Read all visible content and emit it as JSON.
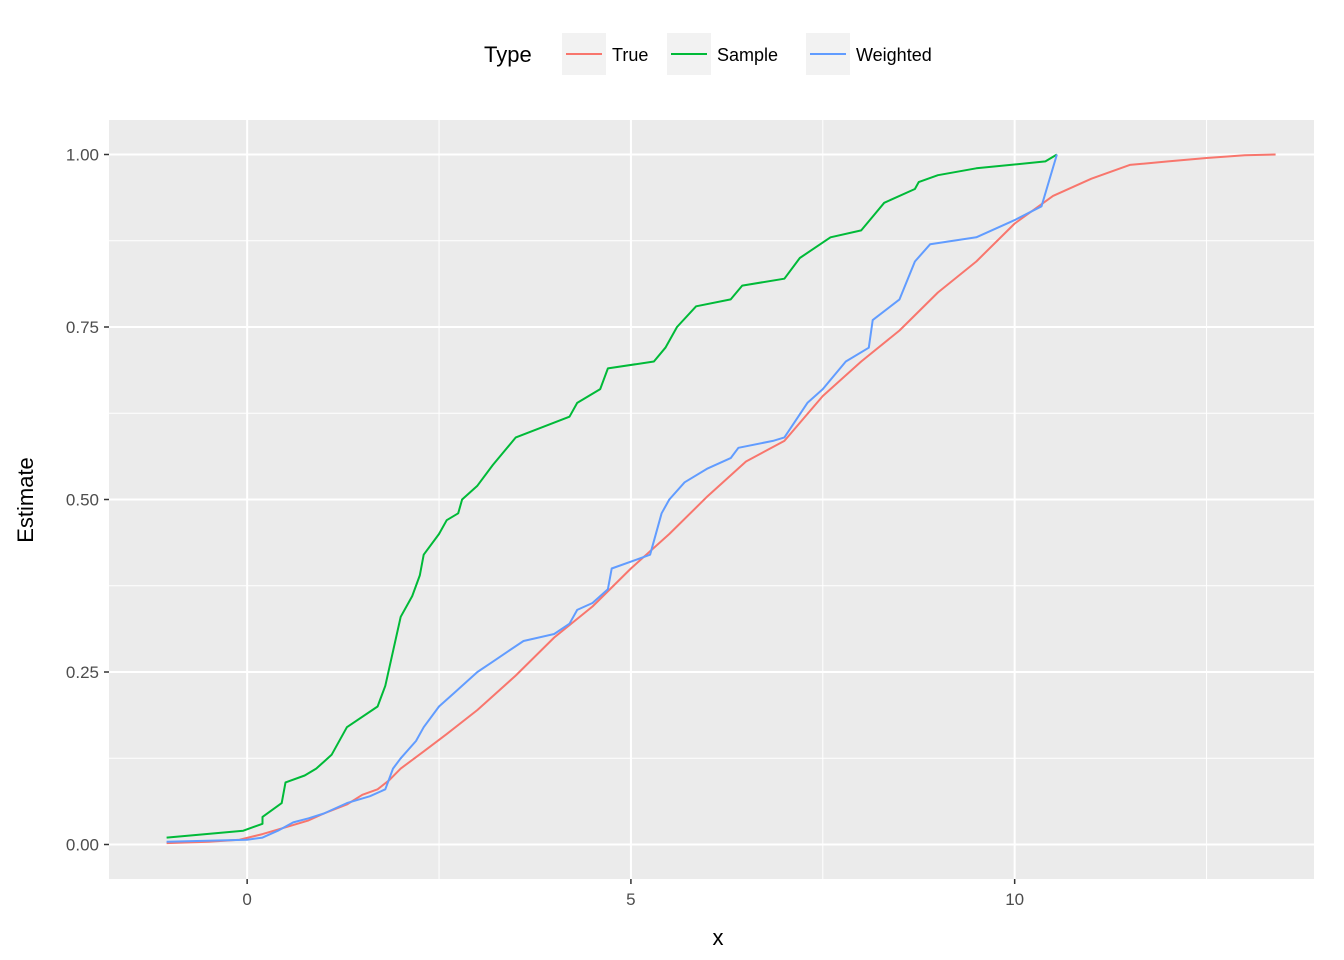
{
  "chart_data": {
    "type": "line",
    "xlabel": "x",
    "ylabel": "Estimate",
    "xlim": [
      -1.8,
      13.9
    ],
    "ylim": [
      -0.05,
      1.05
    ],
    "x_ticks": [
      0,
      5,
      10
    ],
    "x_tick_labels": [
      "0",
      "5",
      "10"
    ],
    "y_ticks": [
      0,
      0.25,
      0.5,
      0.75,
      1.0
    ],
    "y_tick_labels": [
      "0.00",
      "0.25",
      "0.50",
      "0.75",
      "1.00"
    ],
    "grid": true,
    "legend": {
      "title": "Type",
      "position": "top",
      "entries": [
        "True",
        "Sample",
        "Weighted"
      ]
    },
    "series": [
      {
        "name": "True",
        "color": "#F8766D",
        "x": [
          -1.05,
          -0.5,
          -0.1,
          0.2,
          0.5,
          0.8,
          1.0,
          1.3,
          1.5,
          1.7,
          1.85,
          2.0,
          2.3,
          2.6,
          3.0,
          3.5,
          4.0,
          4.5,
          5.0,
          5.5,
          6.0,
          6.5,
          7.0,
          7.5,
          8.0,
          8.5,
          9.0,
          9.5,
          10.0,
          10.5,
          11.0,
          11.5,
          12.0,
          12.5,
          13.0,
          13.4
        ],
        "y": [
          0.002,
          0.004,
          0.007,
          0.015,
          0.025,
          0.035,
          0.045,
          0.058,
          0.072,
          0.08,
          0.093,
          0.11,
          0.135,
          0.16,
          0.195,
          0.245,
          0.3,
          0.345,
          0.4,
          0.45,
          0.505,
          0.555,
          0.585,
          0.65,
          0.7,
          0.745,
          0.8,
          0.845,
          0.9,
          0.94,
          0.965,
          0.985,
          0.99,
          0.995,
          0.999,
          1.0
        ]
      },
      {
        "name": "Sample",
        "color": "#00BA38",
        "x": [
          -1.05,
          -0.05,
          0.2,
          0.2,
          0.45,
          0.5,
          0.75,
          0.9,
          1.0,
          1.1,
          1.3,
          1.7,
          1.8,
          1.9,
          2.0,
          2.15,
          2.25,
          2.3,
          2.5,
          2.6,
          2.75,
          2.8,
          3.0,
          3.2,
          3.5,
          4.2,
          4.3,
          4.6,
          4.7,
          5.3,
          5.45,
          5.6,
          5.85,
          6.3,
          6.45,
          7.0,
          7.2,
          7.6,
          8.0,
          8.15,
          8.3,
          8.7,
          8.75,
          9.0,
          9.5,
          10.4,
          10.55
        ],
        "y": [
          0.01,
          0.02,
          0.03,
          0.04,
          0.06,
          0.09,
          0.1,
          0.11,
          0.12,
          0.13,
          0.17,
          0.2,
          0.23,
          0.28,
          0.33,
          0.36,
          0.39,
          0.42,
          0.45,
          0.47,
          0.48,
          0.5,
          0.52,
          0.55,
          0.59,
          0.62,
          0.64,
          0.66,
          0.69,
          0.7,
          0.72,
          0.75,
          0.78,
          0.79,
          0.81,
          0.82,
          0.85,
          0.88,
          0.89,
          0.91,
          0.93,
          0.95,
          0.96,
          0.97,
          0.98,
          0.99,
          1.0
        ]
      },
      {
        "name": "Weighted",
        "color": "#619CFF",
        "x": [
          -1.05,
          0.0,
          0.2,
          0.4,
          0.6,
          0.8,
          1.0,
          1.3,
          1.6,
          1.8,
          1.9,
          2.0,
          2.2,
          2.3,
          2.5,
          2.7,
          3.0,
          3.2,
          3.4,
          3.6,
          4.0,
          4.2,
          4.3,
          4.5,
          4.7,
          4.75,
          5.25,
          5.4,
          5.5,
          5.7,
          6.0,
          6.3,
          6.4,
          6.85,
          7.0,
          7.3,
          7.5,
          7.8,
          8.1,
          8.15,
          8.5,
          8.7,
          8.9,
          9.5,
          10.0,
          10.35,
          10.55
        ],
        "y": [
          0.004,
          0.007,
          0.01,
          0.02,
          0.032,
          0.038,
          0.045,
          0.06,
          0.07,
          0.08,
          0.11,
          0.125,
          0.15,
          0.17,
          0.2,
          0.22,
          0.25,
          0.265,
          0.28,
          0.295,
          0.305,
          0.32,
          0.34,
          0.35,
          0.37,
          0.4,
          0.42,
          0.48,
          0.5,
          0.525,
          0.545,
          0.56,
          0.575,
          0.585,
          0.59,
          0.64,
          0.66,
          0.7,
          0.72,
          0.76,
          0.79,
          0.845,
          0.87,
          0.88,
          0.905,
          0.925,
          1.0
        ]
      }
    ]
  }
}
